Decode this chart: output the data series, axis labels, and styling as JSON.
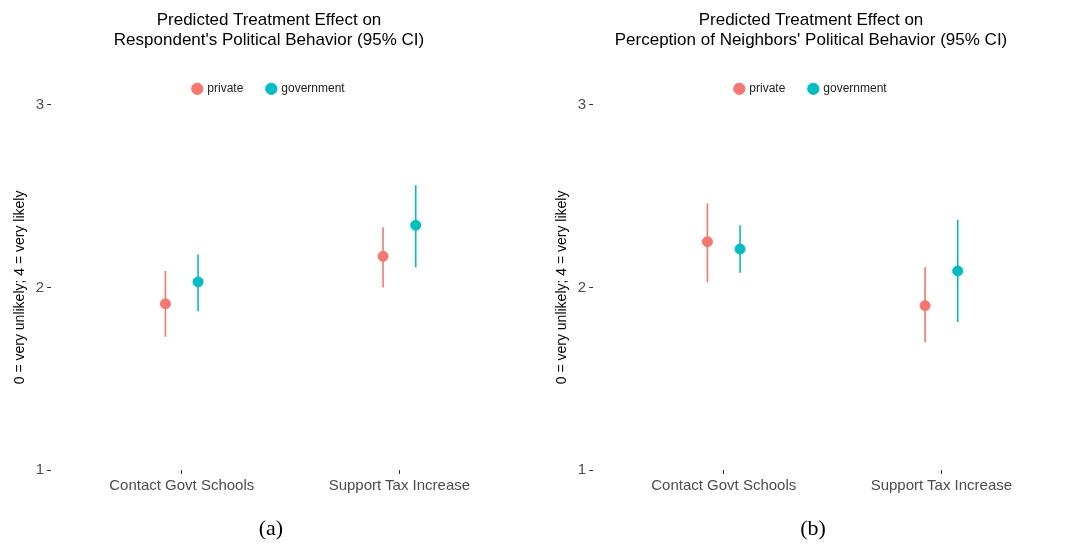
{
  "chart_data": [
    {
      "type": "scatter",
      "title": "Predicted Treatment Effect on\nRespondent's Political Behavior (95% CI)",
      "ylabel": "0 = very unlikely; 4 = very likely",
      "categories": [
        "Contact Govt Schools",
        "Support Tax Increase"
      ],
      "series": [
        {
          "name": "private",
          "color": "#f8766d",
          "values": [
            1.91,
            2.17
          ],
          "errors": [
            [
              1.73,
              2.09
            ],
            [
              2.0,
              2.33
            ]
          ]
        },
        {
          "name": "government",
          "color": "#00bfc4",
          "values": [
            2.03,
            2.34
          ],
          "errors": [
            [
              1.87,
              2.18
            ],
            [
              2.11,
              2.56
            ]
          ]
        }
      ],
      "ylim": [
        1,
        3
      ],
      "yticks": [
        1,
        2,
        3
      ],
      "grid": false,
      "legend": "top",
      "marker": "circle",
      "annotations": [
        "(a)"
      ]
    },
    {
      "type": "scatter",
      "title": "Predicted Treatment Effect on\nPerception of Neighbors' Political Behavior (95% CI)",
      "ylabel": "0 = very unlikely; 4 = very likely",
      "categories": [
        "Contact Govt Schools",
        "Support Tax Increase"
      ],
      "series": [
        {
          "name": "private",
          "color": "#f8766d",
          "values": [
            2.25,
            1.9
          ],
          "errors": [
            [
              2.03,
              2.46
            ],
            [
              1.7,
              2.11
            ]
          ]
        },
        {
          "name": "government",
          "color": "#00bfc4",
          "values": [
            2.21,
            2.09
          ],
          "errors": [
            [
              2.08,
              2.34
            ],
            [
              1.81,
              2.37
            ]
          ]
        }
      ],
      "ylim": [
        1,
        3
      ],
      "yticks": [
        1,
        2,
        3
      ],
      "grid": false,
      "legend": "top",
      "marker": "circle",
      "annotations": [
        "(b)"
      ]
    }
  ]
}
